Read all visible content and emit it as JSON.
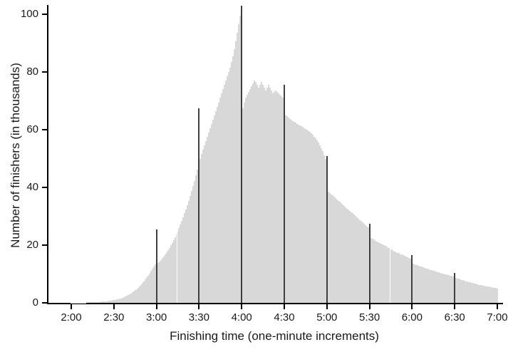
{
  "chart_data": {
    "type": "bar",
    "title": "",
    "xlabel": "Finishing time (one-minute increments)",
    "ylabel": "Number of finishers (in thousands)",
    "x_tick_labels": [
      "2:00",
      "2:30",
      "3:00",
      "3:30",
      "4:00",
      "4:30",
      "5:00",
      "5:30",
      "6:00",
      "6:30",
      "7:00"
    ],
    "x_tick_minutes": [
      120,
      150,
      180,
      210,
      240,
      270,
      300,
      330,
      360,
      390,
      420
    ],
    "x_start_minutes": 120,
    "x_end_minutes": 420,
    "y_ticks": [
      0,
      20,
      40,
      60,
      80,
      100
    ],
    "ylim": [
      0,
      105
    ],
    "grid": "off",
    "legend": "none",
    "bar_color": "#d8d8d8",
    "spike_color": "#3f3f3f",
    "axis_color": "#000000",
    "text_color": "#1a1a1a",
    "spike_minutes": [
      180,
      210,
      240,
      270,
      300,
      330,
      360,
      390
    ],
    "values": [
      0.05,
      0.05,
      0.05,
      0.05,
      0.06,
      0.07,
      0.08,
      0.09,
      0.1,
      0.1,
      0.12,
      0.13,
      0.15,
      0.17,
      0.19,
      0.21,
      0.24,
      0.27,
      0.3,
      0.33,
      0.37,
      0.41,
      0.45,
      0.5,
      0.55,
      0.61,
      0.67,
      0.74,
      0.81,
      0.9,
      1.0,
      1.1,
      1.2,
      1.3,
      1.45,
      1.6,
      1.8,
      2.0,
      2.2,
      2.45,
      2.7,
      3.0,
      3.3,
      3.65,
      4.0,
      4.4,
      4.8,
      5.3,
      5.8,
      6.3,
      6.9,
      7.5,
      8.1,
      8.8,
      9.5,
      10.2,
      11.0,
      11.8,
      12.6,
      13.4,
      25.5,
      13.8,
      14.3,
      14.9,
      15.5,
      16.1,
      16.8,
      17.5,
      18.3,
      19.1,
      19.9,
      20.8,
      21.7,
      22.7,
      23.7,
      24.8,
      25.9,
      27.1,
      28.3,
      29.6,
      31.0,
      32.4,
      33.9,
      35.4,
      37.0,
      38.7,
      40.5,
      42.3,
      44.2,
      46.2,
      67.5,
      50.0,
      51.5,
      53.0,
      54.5,
      56.0,
      57.5,
      59.0,
      60.5,
      62.0,
      63.5,
      65.0,
      66.5,
      68.0,
      69.5,
      71.0,
      72.5,
      74.0,
      75.5,
      77.0,
      78.5,
      80.0,
      81.5,
      83.5,
      85.5,
      88.0,
      90.5,
      93.5,
      96.5,
      99.5,
      103.0,
      67.5,
      69.5,
      71.0,
      72.0,
      73.0,
      74.0,
      75.0,
      76.0,
      77.0,
      76.5,
      75.5,
      74.5,
      75.5,
      76.5,
      75.5,
      74.5,
      73.5,
      74.5,
      75.5,
      74.5,
      73.5,
      72.5,
      73.0,
      73.5,
      73.0,
      72.5,
      72.0,
      71.5,
      71.0,
      75.5,
      65.0,
      64.6,
      64.2,
      63.8,
      63.4,
      63.0,
      62.7,
      62.4,
      62.1,
      61.8,
      61.5,
      61.2,
      60.9,
      60.6,
      60.3,
      60.0,
      59.6,
      59.2,
      58.7,
      58.2,
      57.6,
      57.0,
      56.3,
      55.5,
      54.6,
      53.6,
      52.5,
      51.2,
      49.8,
      50.8,
      38.5,
      38.1,
      37.6,
      37.2,
      36.7,
      36.3,
      35.8,
      35.4,
      35.0,
      34.5,
      34.1,
      33.6,
      33.2,
      32.7,
      32.3,
      31.8,
      31.4,
      31.0,
      30.5,
      30.1,
      29.6,
      29.2,
      28.7,
      28.3,
      27.8,
      27.4,
      27.0,
      26.5,
      26.1,
      27.3,
      22.5,
      22.2,
      21.9,
      21.6,
      21.3,
      21.0,
      20.8,
      20.5,
      20.2,
      19.9,
      19.7,
      19.4,
      19.1,
      18.9,
      18.6,
      18.4,
      18.1,
      17.9,
      17.6,
      17.4,
      17.2,
      16.9,
      16.7,
      16.5,
      16.3,
      16.0,
      15.8,
      15.6,
      15.4,
      16.6,
      13.6,
      13.4,
      13.2,
      13.0,
      12.8,
      12.6,
      12.5,
      12.3,
      12.1,
      11.9,
      11.8,
      11.6,
      11.4,
      11.3,
      11.1,
      11.0,
      10.8,
      10.7,
      10.5,
      10.4,
      10.2,
      10.1,
      10.0,
      9.8,
      9.7,
      9.6,
      9.4,
      9.3,
      9.2,
      10.4,
      8.6,
      8.4,
      8.3,
      8.1,
      8.0,
      7.8,
      7.7,
      7.5,
      7.4,
      7.2,
      7.1,
      7.0,
      6.8,
      6.7,
      6.6,
      6.5,
      6.3,
      6.2,
      6.1,
      6.0,
      5.9,
      5.8,
      5.7,
      5.6,
      5.5,
      5.4,
      5.3,
      5.2,
      5.1,
      5.0
    ]
  }
}
